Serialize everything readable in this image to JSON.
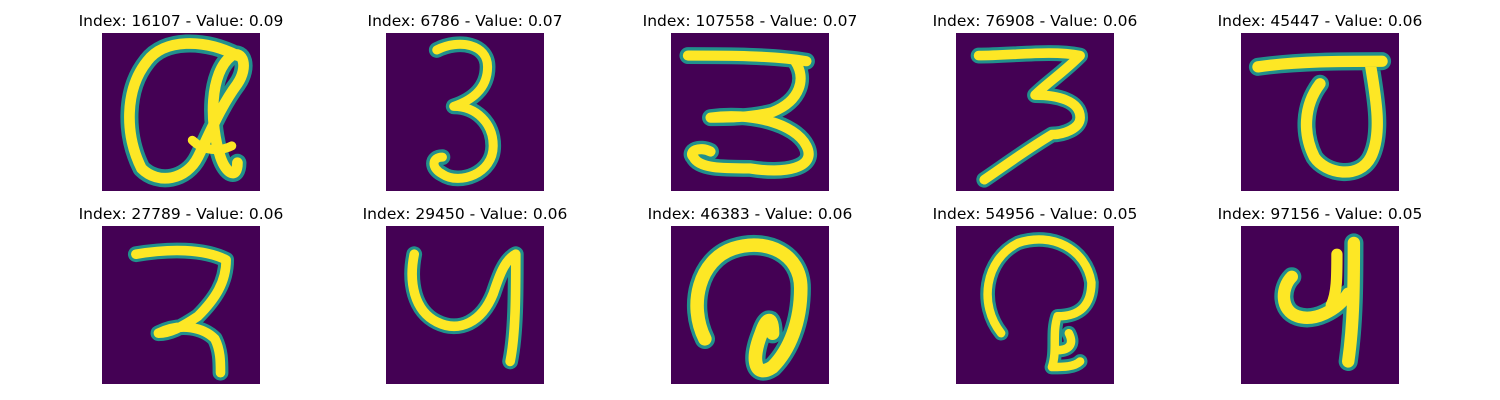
{
  "colors": {
    "background": "#440154",
    "stroke": "#fde725",
    "edge": "#21908c"
  },
  "panels": [
    {
      "index": "16107",
      "value": "0.09",
      "title": "Index: 16107 - Value: 0.09"
    },
    {
      "index": "6786",
      "value": "0.07",
      "title": "Index: 6786 - Value: 0.07"
    },
    {
      "index": "107558",
      "value": "0.07",
      "title": "Index: 107558 - Value: 0.07"
    },
    {
      "index": "76908",
      "value": "0.06",
      "title": "Index: 76908 - Value: 0.06"
    },
    {
      "index": "45447",
      "value": "0.06",
      "title": "Index: 45447 - Value: 0.06"
    },
    {
      "index": "27789",
      "value": "0.06",
      "title": "Index: 27789 - Value: 0.06"
    },
    {
      "index": "29450",
      "value": "0.06",
      "title": "Index: 29450 - Value: 0.06"
    },
    {
      "index": "46383",
      "value": "0.06",
      "title": "Index: 46383 - Value: 0.06"
    },
    {
      "index": "54956",
      "value": "0.05",
      "title": "Index: 54956 - Value: 0.05"
    },
    {
      "index": "97156",
      "value": "0.05",
      "title": "Index: 97156 - Value: 0.05"
    }
  ]
}
